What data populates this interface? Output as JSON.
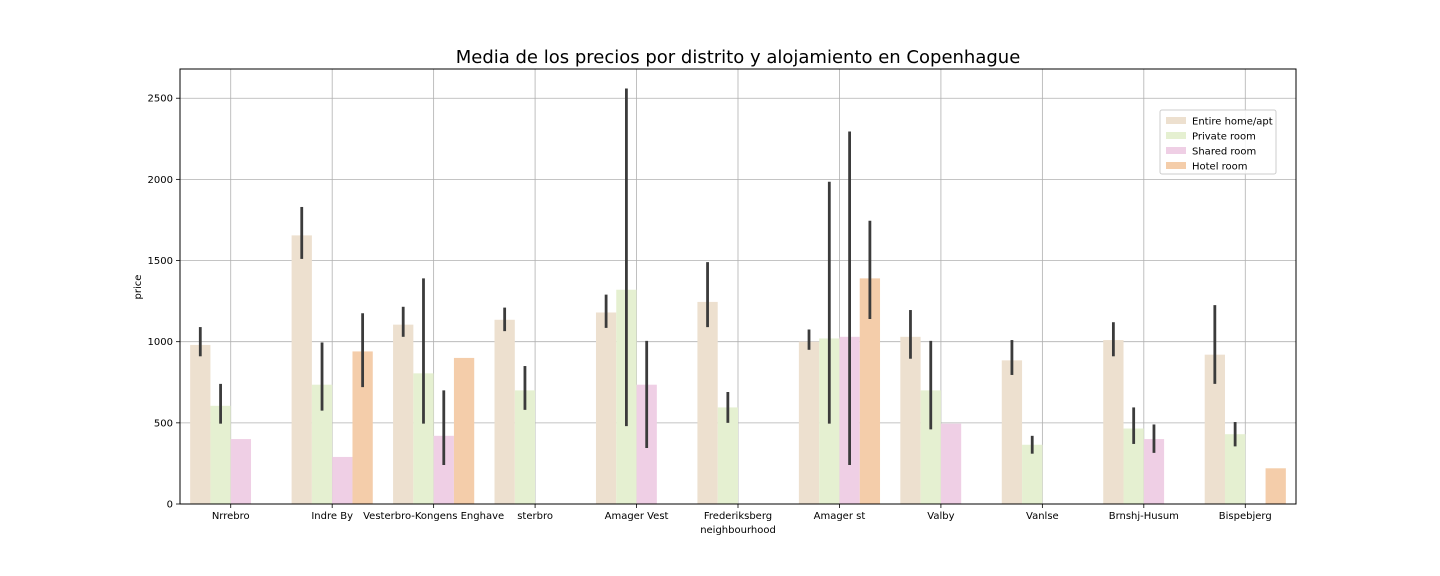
{
  "chart_data": {
    "type": "bar",
    "title": "Media de los precios por distrito y alojamiento en Copenhague",
    "xlabel": "neighbourhood",
    "ylabel": "price",
    "ylim": [
      0,
      2680
    ],
    "yticks": [
      0,
      500,
      1000,
      1500,
      2000,
      2500
    ],
    "grid": true,
    "legend_position": "top-right",
    "categories": [
      "Nrrebro",
      "Indre By",
      "Vesterbro-Kongens Enghave",
      "sterbro",
      "Amager Vest",
      "Frederiksberg",
      "Amager st",
      "Valby",
      "Vanlse",
      "Brnshj-Husum",
      "Bispebjerg"
    ],
    "series": [
      {
        "name": "Entire home/apt",
        "color": "#ede0cf",
        "values": [
          980,
          1655,
          1105,
          1135,
          1180,
          1245,
          1000,
          1030,
          885,
          1010,
          920
        ],
        "err_low": [
          910,
          1510,
          1030,
          1065,
          1085,
          1090,
          950,
          895,
          795,
          910,
          740
        ],
        "err_high": [
          1090,
          1830,
          1215,
          1210,
          1290,
          1490,
          1075,
          1195,
          1010,
          1120,
          1225
        ]
      },
      {
        "name": "Private room",
        "color": "#e5f0d1",
        "values": [
          605,
          735,
          805,
          700,
          1320,
          595,
          1020,
          700,
          365,
          465,
          430
        ],
        "err_low": [
          495,
          575,
          495,
          580,
          480,
          500,
          495,
          460,
          310,
          370,
          355
        ],
        "err_high": [
          740,
          995,
          1390,
          850,
          2560,
          690,
          1985,
          1005,
          420,
          595,
          505
        ]
      },
      {
        "name": "Shared room",
        "color": "#efcfe5",
        "values": [
          400,
          290,
          420,
          null,
          735,
          null,
          1030,
          495,
          null,
          400,
          null
        ],
        "err_low": [
          null,
          null,
          240,
          null,
          345,
          null,
          240,
          null,
          null,
          315,
          null
        ],
        "err_high": [
          null,
          null,
          700,
          null,
          1005,
          null,
          2295,
          null,
          null,
          490,
          null
        ]
      },
      {
        "name": "Hotel room",
        "color": "#f4cdaa",
        "values": [
          null,
          940,
          900,
          null,
          null,
          null,
          1390,
          null,
          null,
          null,
          220
        ],
        "err_low": [
          null,
          720,
          null,
          null,
          null,
          null,
          1140,
          null,
          null,
          null,
          null
        ],
        "err_high": [
          null,
          1175,
          null,
          null,
          null,
          null,
          1745,
          null,
          null,
          null,
          null
        ]
      }
    ]
  }
}
